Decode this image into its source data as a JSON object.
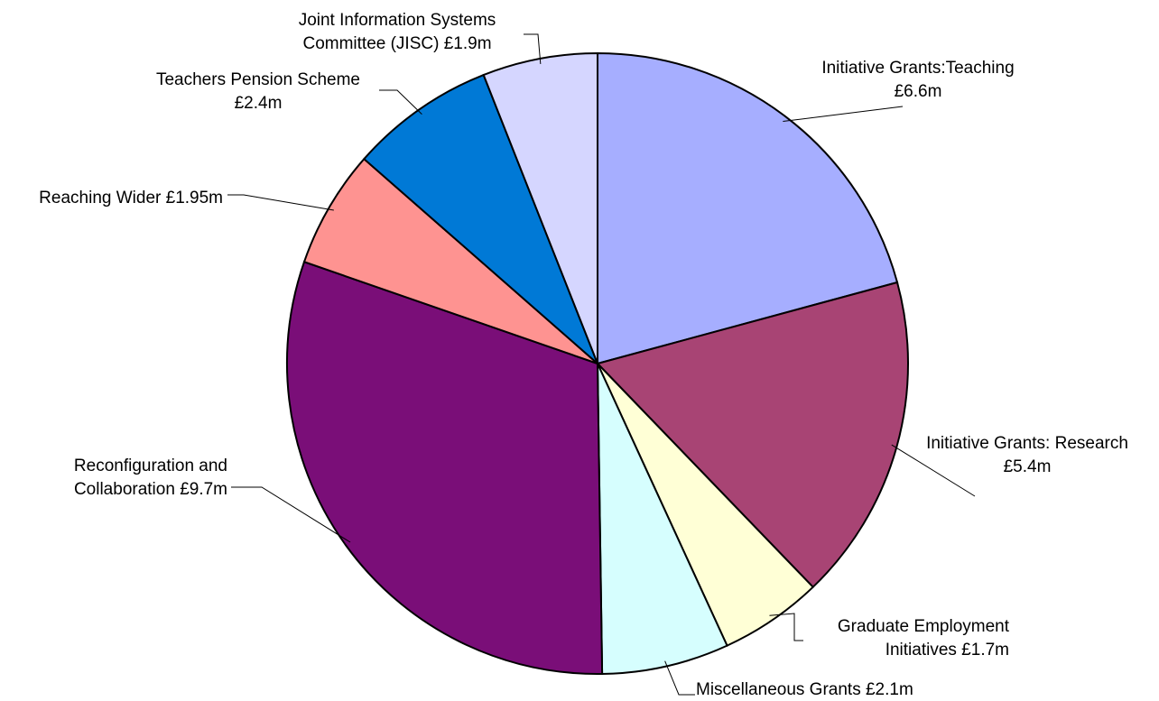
{
  "chart_data": {
    "type": "pie",
    "start_angle_deg": 0,
    "direction": "clockwise",
    "slices": [
      {
        "label_lines": [
          "Initiative Grants:Teaching",
          "£6.6m"
        ],
        "value": 6.6,
        "color": "#a6aeff"
      },
      {
        "label_lines": [
          "Initiative Grants: Research",
          "£5.4m"
        ],
        "value": 5.4,
        "color": "#a84474"
      },
      {
        "label_lines": [
          "Graduate Employment",
          "Initiatives £1.7m"
        ],
        "value": 1.7,
        "color": "#ffffd6"
      },
      {
        "label_lines": [
          "Miscellaneous Grants £2.1m"
        ],
        "value": 2.1,
        "color": "#d6fefe"
      },
      {
        "label_lines": [
          "Reconfiguration and",
          "Collaboration £9.7m"
        ],
        "value": 9.7,
        "color": "#7a0e78"
      },
      {
        "label_lines": [
          "Reaching Wider £1.95m"
        ],
        "value": 1.95,
        "color": "#fe9391"
      },
      {
        "label_lines": [
          "Teachers Pension Scheme",
          "£2.4m"
        ],
        "value": 2.4,
        "color": "#0079d6"
      },
      {
        "label_lines": [
          "Joint Information Systems",
          "Committee (JISC) £1.9m"
        ],
        "value": 1.9,
        "color": "#d5d6ff"
      }
    ]
  }
}
